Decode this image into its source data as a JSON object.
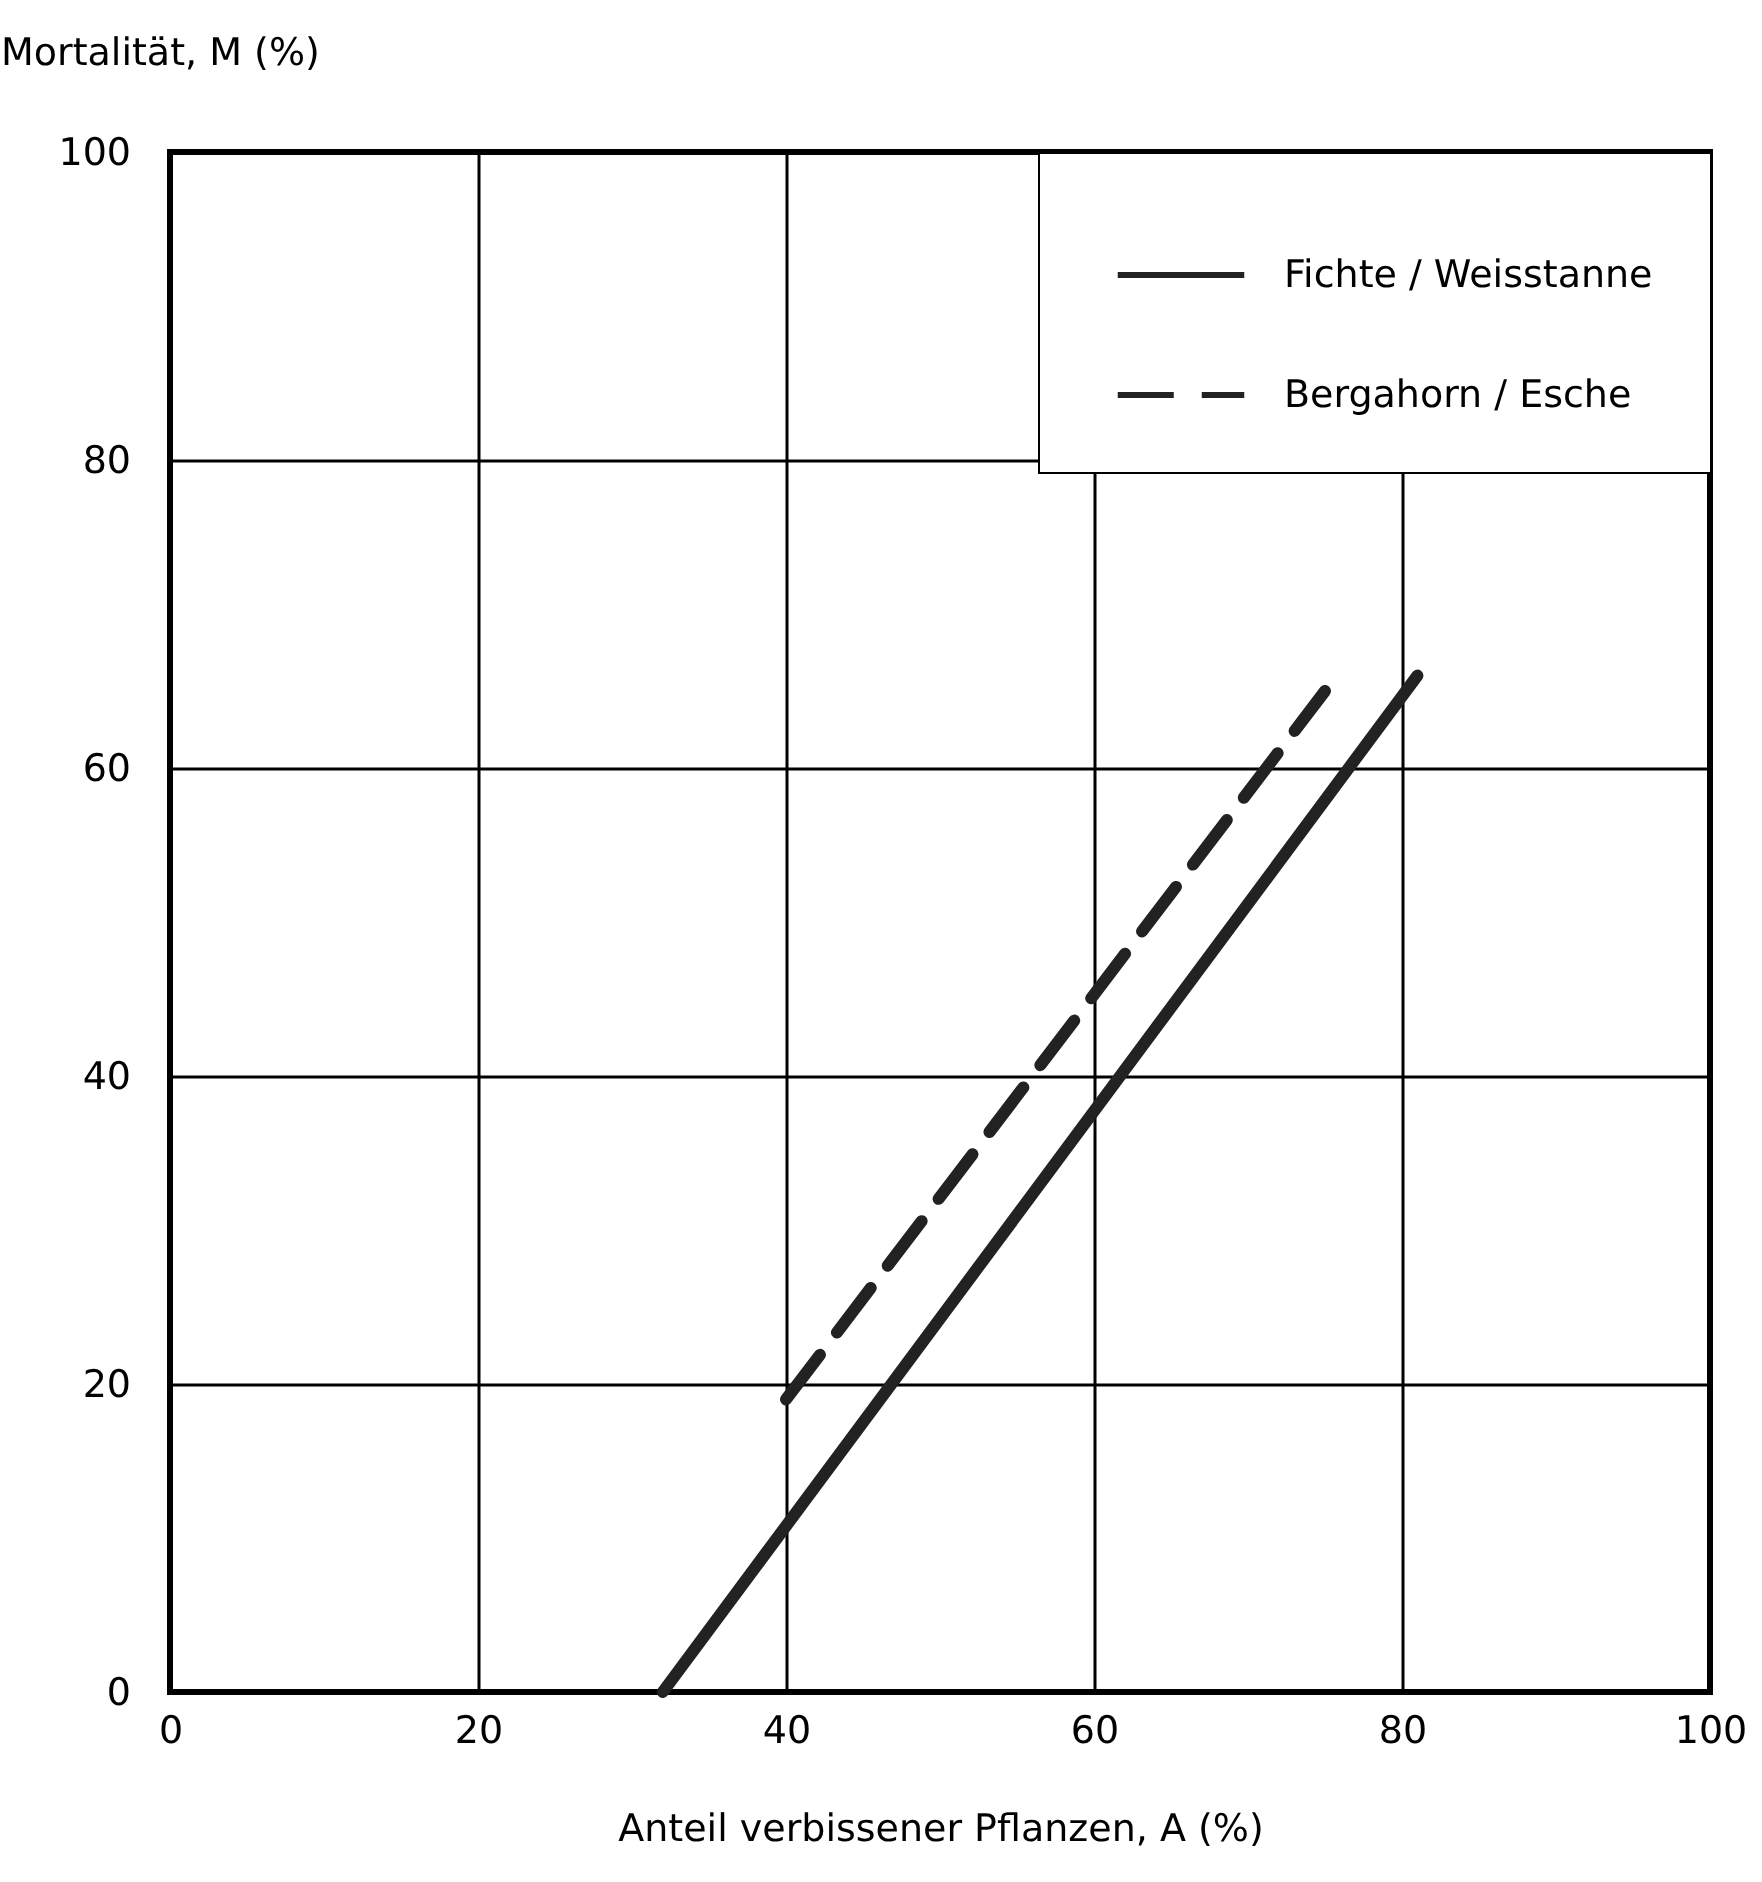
{
  "chart_data": {
    "type": "line",
    "xlabel": "Anteil verbissener Pflanzen, A (%)",
    "ylabel": "Mortalität, M (%)",
    "xlim": [
      0,
      100
    ],
    "ylim": [
      0,
      100
    ],
    "xticks": [
      0,
      20,
      40,
      60,
      80,
      100
    ],
    "yticks": [
      0,
      20,
      40,
      60,
      80,
      100
    ],
    "grid": true,
    "legend": "top right",
    "marker": "none",
    "series": [
      {
        "name": "Fichte / Weisstanne",
        "color": "#222222",
        "line_style": "solid",
        "x": [
          32,
          81
        ],
        "values": [
          0,
          66
        ]
      },
      {
        "name": "Bergahorn / Esche",
        "color": "#222222",
        "line_style": "dashed",
        "x": [
          40,
          75
        ],
        "values": [
          19,
          65
        ]
      }
    ]
  }
}
